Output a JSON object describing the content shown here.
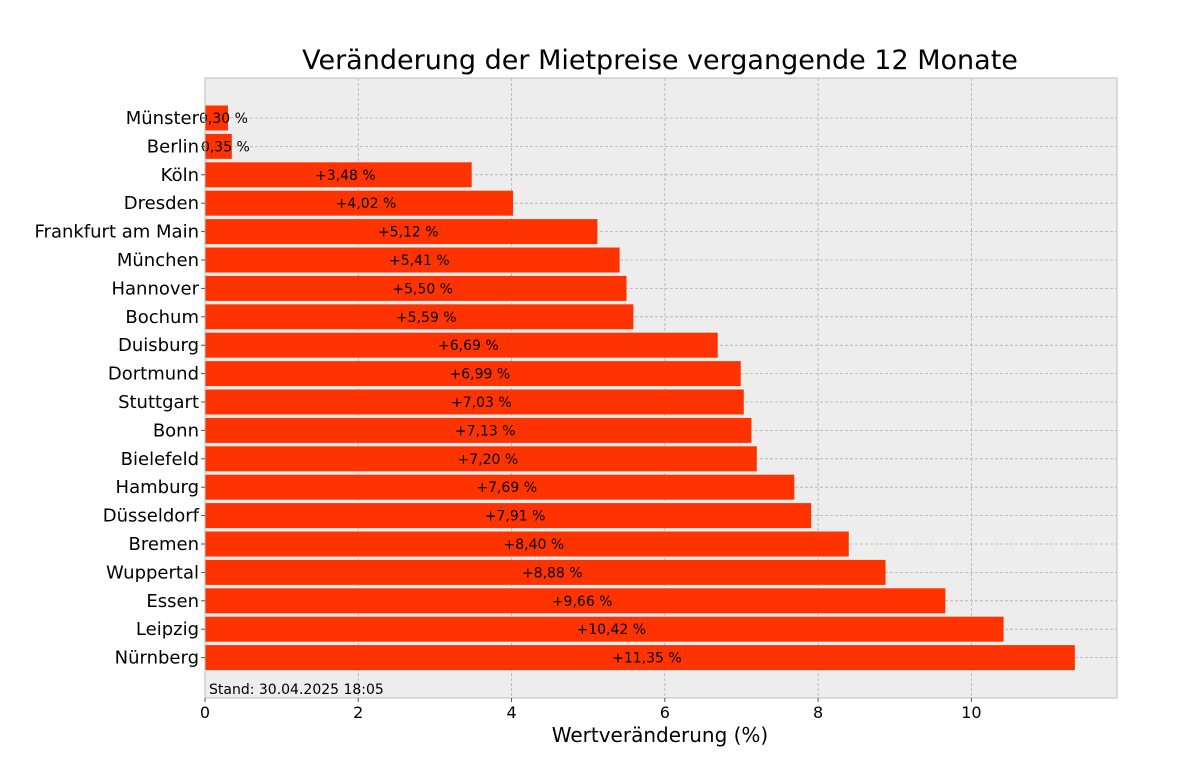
{
  "chart_data": {
    "type": "bar",
    "orientation": "horizontal",
    "title": "Veränderung der Mietpreise vergangende 12 Monate",
    "xlabel": "Wertveränderung (%)",
    "ylabel": "",
    "xlim": [
      0,
      11.9
    ],
    "xticks": [
      0,
      2,
      4,
      6,
      8,
      10
    ],
    "grid": true,
    "categories": [
      "Münster",
      "Berlin",
      "Köln",
      "Dresden",
      "Frankfurt am Main",
      "München",
      "Hannover",
      "Bochum",
      "Duisburg",
      "Dortmund",
      "Stuttgart",
      "Bonn",
      "Bielefeld",
      "Hamburg",
      "Düsseldorf",
      "Bremen",
      "Wuppertal",
      "Essen",
      "Leipzig",
      "Nürnberg"
    ],
    "values": [
      0.3,
      0.35,
      3.48,
      4.02,
      5.12,
      5.41,
      5.5,
      5.59,
      6.69,
      6.99,
      7.03,
      7.13,
      7.2,
      7.69,
      7.91,
      8.4,
      8.88,
      9.66,
      10.42,
      11.35
    ],
    "value_labels": [
      "0,30 %",
      "0,35 %",
      "+3,48 %",
      "+4,02 %",
      "+5,12 %",
      "+5,41 %",
      "+5,50 %",
      "+5,59 %",
      "+6,69 %",
      "+6,99 %",
      "+7,03 %",
      "+7,13 %",
      "+7,20 %",
      "+7,69 %",
      "+7,91 %",
      "+8,40 %",
      "+8,88 %",
      "+9,66 %",
      "+10,42 %",
      "+11,35 %"
    ],
    "footnote": "Stand: 30.04.2025 18:05",
    "colors": {
      "bar": "#ff3300",
      "plot_background": "#ededed",
      "grid": "#b0b0b0",
      "frame": "#bcbcbc"
    }
  }
}
